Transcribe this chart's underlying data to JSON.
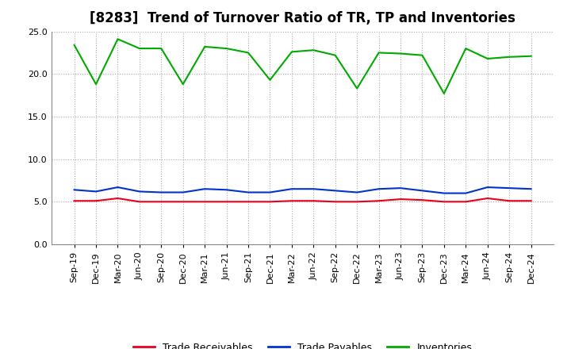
{
  "title": "[8283]  Trend of Turnover Ratio of TR, TP and Inventories",
  "labels": [
    "Sep-19",
    "Dec-19",
    "Mar-20",
    "Jun-20",
    "Sep-20",
    "Dec-20",
    "Mar-21",
    "Jun-21",
    "Sep-21",
    "Dec-21",
    "Mar-22",
    "Jun-22",
    "Sep-22",
    "Dec-22",
    "Mar-23",
    "Jun-23",
    "Sep-23",
    "Dec-23",
    "Mar-24",
    "Jun-24",
    "Sep-24",
    "Dec-24"
  ],
  "trade_receivables": [
    5.1,
    5.1,
    5.4,
    5.0,
    5.0,
    5.0,
    5.0,
    5.0,
    5.0,
    5.0,
    5.1,
    5.1,
    5.0,
    5.0,
    5.1,
    5.3,
    5.2,
    5.0,
    5.0,
    5.4,
    5.1,
    5.1
  ],
  "trade_payables": [
    6.4,
    6.2,
    6.7,
    6.2,
    6.1,
    6.1,
    6.5,
    6.4,
    6.1,
    6.1,
    6.5,
    6.5,
    6.3,
    6.1,
    6.5,
    6.6,
    6.3,
    6.0,
    6.0,
    6.7,
    6.6,
    6.5
  ],
  "inventories": [
    23.4,
    18.8,
    24.1,
    23.0,
    23.0,
    18.8,
    23.2,
    23.0,
    22.5,
    19.3,
    22.6,
    22.8,
    22.2,
    18.3,
    22.5,
    22.4,
    22.2,
    17.7,
    23.0,
    21.8,
    22.0,
    22.1
  ],
  "tr_color": "#e8001c",
  "tp_color": "#0033cc",
  "inv_color": "#00aa00",
  "ylim": [
    0.0,
    25.0
  ],
  "yticks": [
    0.0,
    5.0,
    10.0,
    15.0,
    20.0,
    25.0
  ],
  "background_color": "#ffffff",
  "plot_bg_color": "#ffffff",
  "grid_color": "#aaaaaa",
  "title_fontsize": 12,
  "legend_fontsize": 9,
  "tick_fontsize": 8
}
